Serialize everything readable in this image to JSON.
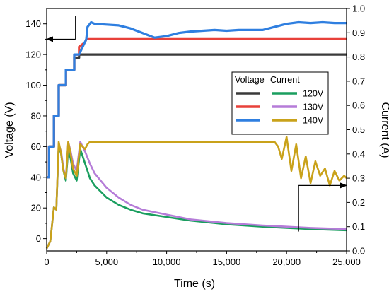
{
  "chart_data": {
    "type": "line",
    "title": "",
    "xlabel": "Time (s)",
    "ylabel_left": "Voltage (V)",
    "ylabel_right": "Current (A)",
    "xlim": [
      0,
      25000
    ],
    "ylim_left": [
      -8,
      150
    ],
    "ylim_right": [
      0.0,
      1.0
    ],
    "x_ticks": [
      0,
      5000,
      10000,
      15000,
      20000,
      25000
    ],
    "x_tick_labels": [
      "0",
      "5,000",
      "10,000",
      "15,000",
      "20,000",
      "25,000"
    ],
    "y_left_ticks": [
      0,
      20,
      40,
      60,
      80,
      100,
      120,
      140
    ],
    "y_left_tick_labels": [
      "0",
      "20",
      "40",
      "60",
      "80",
      "100",
      "120",
      "140"
    ],
    "y_right_ticks": [
      0.0,
      0.1,
      0.2,
      0.3,
      0.4,
      0.5,
      0.6,
      0.7,
      0.8,
      0.9,
      1.0
    ],
    "y_right_tick_labels": [
      "0.0",
      "0.1",
      "0.2",
      "0.3",
      "0.4",
      "0.5",
      "0.6",
      "0.7",
      "0.8",
      "0.9",
      "1.0"
    ],
    "grid": false,
    "legend": {
      "placement": "center-right",
      "header_voltage": "Voltage",
      "header_current": "Current",
      "entries": [
        "120V",
        "130V",
        "140V"
      ]
    },
    "series": [
      {
        "name": "120V",
        "axis": "left",
        "role": "voltage",
        "color": "#3a3a3a",
        "x": [
          0,
          200,
          200,
          600,
          600,
          1000,
          1000,
          1600,
          1600,
          2300,
          2300,
          2700,
          2700,
          3300,
          25000
        ],
        "y": [
          40,
          40,
          60,
          60,
          80,
          80,
          100,
          100,
          110,
          110,
          118,
          118,
          120,
          120,
          120
        ]
      },
      {
        "name": "130V",
        "axis": "left",
        "role": "voltage",
        "color": "#e8413a",
        "x": [
          0,
          200,
          200,
          600,
          600,
          1000,
          1000,
          1600,
          1600,
          2300,
          2300,
          2700,
          2700,
          3200,
          3300,
          25000
        ],
        "y": [
          40,
          40,
          60,
          60,
          80,
          80,
          100,
          100,
          110,
          110,
          120,
          120,
          125,
          128,
          130,
          130
        ]
      },
      {
        "name": "140V",
        "axis": "left",
        "role": "voltage",
        "color": "#2f7fe0",
        "x": [
          0,
          200,
          200,
          600,
          600,
          1000,
          1000,
          1600,
          1600,
          2300,
          2300,
          2700,
          2700,
          3300,
          3400,
          3700,
          4000,
          5000,
          6000,
          7000,
          8000,
          9000,
          10000,
          11000,
          12000,
          13000,
          14000,
          15000,
          16000,
          17000,
          18000,
          19000,
          20000,
          21000,
          22000,
          23000,
          24000,
          25000
        ],
        "y": [
          40,
          40,
          60,
          60,
          80,
          80,
          100,
          100,
          110,
          110,
          120,
          120,
          120,
          130,
          138,
          141,
          140,
          139.5,
          139,
          137,
          134,
          131,
          132,
          134,
          135,
          135.5,
          136,
          135.5,
          136,
          136,
          136,
          138,
          140,
          141,
          140.5,
          141,
          140.5,
          140.5
        ]
      },
      {
        "name": "120V",
        "axis": "right",
        "role": "current",
        "color": "#1a9e5f",
        "x": [
          0,
          300,
          600,
          800,
          1000,
          1200,
          1400,
          1600,
          1800,
          2000,
          2200,
          2500,
          2800,
          3200,
          3600,
          4000,
          5000,
          6000,
          7000,
          8000,
          10000,
          12000,
          15000,
          18000,
          20000,
          22000,
          25000
        ],
        "y": [
          0.01,
          0.04,
          0.18,
          0.17,
          0.43,
          0.4,
          0.33,
          0.29,
          0.42,
          0.38,
          0.32,
          0.29,
          0.42,
          0.36,
          0.3,
          0.27,
          0.22,
          0.19,
          0.17,
          0.155,
          0.14,
          0.125,
          0.11,
          0.1,
          0.095,
          0.09,
          0.085
        ]
      },
      {
        "name": "130V",
        "axis": "right",
        "role": "current",
        "color": "#b57cd8",
        "x": [
          0,
          300,
          600,
          800,
          1000,
          1200,
          1400,
          1600,
          1800,
          2000,
          2200,
          2500,
          2800,
          3200,
          3600,
          4000,
          5000,
          6000,
          7000,
          8000,
          10000,
          12000,
          15000,
          18000,
          20000,
          22000,
          25000
        ],
        "y": [
          0.01,
          0.04,
          0.18,
          0.17,
          0.44,
          0.41,
          0.34,
          0.3,
          0.45,
          0.41,
          0.36,
          0.33,
          0.45,
          0.41,
          0.36,
          0.32,
          0.26,
          0.22,
          0.19,
          0.17,
          0.15,
          0.13,
          0.115,
          0.105,
          0.1,
          0.095,
          0.09
        ]
      },
      {
        "name": "140V",
        "axis": "right",
        "role": "current",
        "color": "#c9a21a",
        "x": [
          0,
          300,
          600,
          800,
          1000,
          1200,
          1400,
          1600,
          1800,
          2000,
          2200,
          2500,
          2800,
          3200,
          3400,
          3600,
          5000,
          7000,
          9000,
          11000,
          13000,
          15000,
          17000,
          19000,
          19300,
          19600,
          20000,
          20400,
          20800,
          21200,
          21600,
          22000,
          22400,
          22800,
          23200,
          23600,
          24000,
          24400,
          24800,
          25000
        ],
        "y": [
          0.01,
          0.04,
          0.18,
          0.17,
          0.45,
          0.4,
          0.33,
          0.3,
          0.45,
          0.4,
          0.34,
          0.31,
          0.44,
          0.42,
          0.44,
          0.45,
          0.45,
          0.45,
          0.45,
          0.45,
          0.45,
          0.45,
          0.45,
          0.45,
          0.43,
          0.38,
          0.47,
          0.33,
          0.44,
          0.3,
          0.39,
          0.28,
          0.37,
          0.31,
          0.34,
          0.27,
          0.33,
          0.29,
          0.31,
          0.3
        ]
      }
    ],
    "annotations": [
      {
        "type": "arrow",
        "axis": "left",
        "meaning": "voltage curves read on left axis",
        "from": [
          2400,
          130
        ],
        "to": [
          0,
          130
        ],
        "corner": [
          2400,
          145
        ]
      },
      {
        "type": "arrow",
        "axis": "right",
        "meaning": "current curves read on right axis",
        "from": [
          21000,
          0.27
        ],
        "to": [
          25000,
          0.27
        ],
        "corner": [
          21000,
          0.08
        ]
      }
    ]
  }
}
